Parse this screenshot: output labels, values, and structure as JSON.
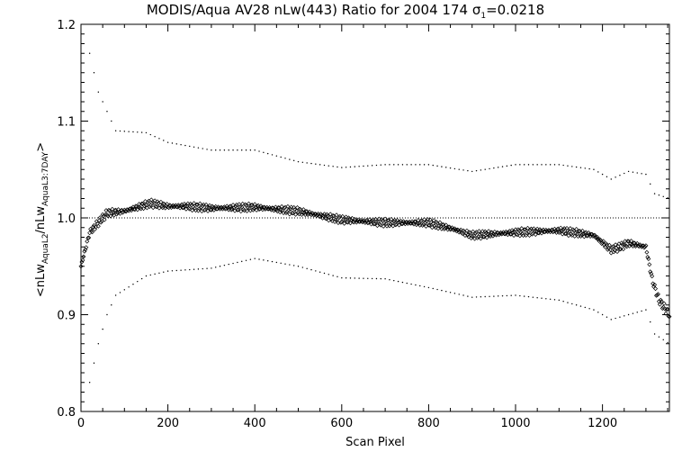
{
  "chart_data": {
    "type": "scatter",
    "title": {
      "prefix": "MODIS/Aqua AV28 nLw(443) Ratio for 2004 174 ",
      "sigma": "σ",
      "sigma_sub": "1",
      "suffix": "=0.0218"
    },
    "xlabel": "Scan Pixel",
    "ylabel": {
      "open": "<nLw",
      "sub1": "AquaL2",
      "mid": "/nLw",
      "sub2": "AquaL3:7DAY",
      "close": ">"
    },
    "xlim": [
      0,
      1354
    ],
    "ylim": [
      0.8,
      1.2
    ],
    "x_ticks": [
      0,
      200,
      400,
      600,
      800,
      1000,
      1200
    ],
    "x_tick_labels": [
      "0",
      "200",
      "400",
      "600",
      "800",
      "1000",
      "1200"
    ],
    "y_ticks": [
      0.8,
      0.9,
      1.0,
      1.1,
      1.2
    ],
    "y_tick_labels": [
      "0.8",
      "0.9",
      "1.0",
      "1.1",
      "1.2"
    ],
    "reference_line": 1.0,
    "series": [
      {
        "role": "mean",
        "marker": "diamond",
        "x_step": 2,
        "anchors": [
          [
            0,
            0.95
          ],
          [
            20,
            0.985
          ],
          [
            40,
            0.995
          ],
          [
            60,
            1.005
          ],
          [
            100,
            1.007
          ],
          [
            160,
            1.015
          ],
          [
            200,
            1.012
          ],
          [
            240,
            1.012
          ],
          [
            300,
            1.01
          ],
          [
            400,
            1.011
          ],
          [
            500,
            1.007
          ],
          [
            600,
            0.998
          ],
          [
            700,
            0.995
          ],
          [
            800,
            0.995
          ],
          [
            860,
            0.988
          ],
          [
            900,
            0.982
          ],
          [
            1000,
            0.985
          ],
          [
            1100,
            0.987
          ],
          [
            1180,
            0.982
          ],
          [
            1220,
            0.967
          ],
          [
            1240,
            0.97
          ],
          [
            1260,
            0.974
          ],
          [
            1300,
            0.97
          ],
          [
            1315,
            0.935
          ],
          [
            1330,
            0.915
          ],
          [
            1354,
            0.9
          ]
        ]
      },
      {
        "role": "upper-envelope",
        "marker": "dot",
        "x_step": 10,
        "anchors": [
          [
            20,
            1.17
          ],
          [
            40,
            1.13
          ],
          [
            60,
            1.11
          ],
          [
            80,
            1.09
          ],
          [
            150,
            1.088
          ],
          [
            200,
            1.078
          ],
          [
            300,
            1.07
          ],
          [
            400,
            1.07
          ],
          [
            500,
            1.058
          ],
          [
            600,
            1.052
          ],
          [
            700,
            1.055
          ],
          [
            800,
            1.055
          ],
          [
            900,
            1.048
          ],
          [
            1000,
            1.055
          ],
          [
            1100,
            1.055
          ],
          [
            1180,
            1.05
          ],
          [
            1220,
            1.04
          ],
          [
            1260,
            1.048
          ],
          [
            1300,
            1.045
          ],
          [
            1320,
            1.025
          ],
          [
            1354,
            1.02
          ]
        ]
      },
      {
        "role": "lower-envelope",
        "marker": "dot",
        "x_step": 10,
        "anchors": [
          [
            20,
            0.83
          ],
          [
            40,
            0.87
          ],
          [
            60,
            0.9
          ],
          [
            80,
            0.92
          ],
          [
            150,
            0.94
          ],
          [
            200,
            0.945
          ],
          [
            300,
            0.948
          ],
          [
            400,
            0.958
          ],
          [
            500,
            0.95
          ],
          [
            600,
            0.938
          ],
          [
            700,
            0.937
          ],
          [
            800,
            0.928
          ],
          [
            900,
            0.918
          ],
          [
            1000,
            0.92
          ],
          [
            1100,
            0.915
          ],
          [
            1180,
            0.905
          ],
          [
            1220,
            0.895
          ],
          [
            1260,
            0.9
          ],
          [
            1300,
            0.905
          ],
          [
            1320,
            0.88
          ],
          [
            1354,
            0.87
          ]
        ]
      }
    ]
  }
}
